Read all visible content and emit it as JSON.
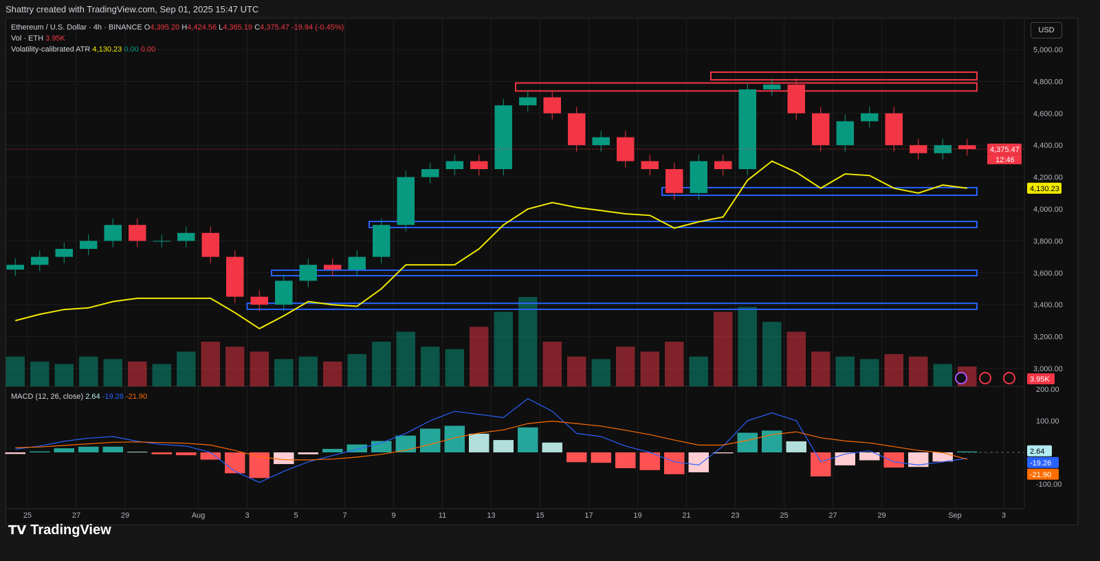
{
  "header": {
    "caption": "Shattry created with TradingView.com, Sep 01, 2025 15:47 UTC",
    "symbol": "Ethereum / U.S. Dollar · 4h · BINANCE",
    "o": "4,395.20",
    "h": "4,424.56",
    "l": "4,365.19",
    "c": "4,375.47",
    "change": "-19.94 (-0.45%)",
    "vol_label": "Vol · ETH",
    "vol_value": "3.95K",
    "atr_label": "Volatility-calibrated ATR",
    "atr_value": "4,130.23",
    "atr_v2": "0.00",
    "atr_v3": "0.00",
    "currency": "USD"
  },
  "macd_legend": {
    "label": "MACD (12, 26, close)",
    "hist": "2.64",
    "macd": "-19.26",
    "signal": "-21.90"
  },
  "badges": {
    "price": "4,375.47",
    "countdown": "12:46",
    "atr": "4,130.23",
    "vol": "3.95K",
    "hist": "2.64",
    "macd": "-19.26",
    "signal": "-21.90"
  },
  "footer": {
    "logo": "TradingView"
  },
  "colors": {
    "up": "#089981",
    "down": "#f23645",
    "atr": "#f2ea00",
    "macd": "#2962ff",
    "signal": "#ff6d00",
    "box_red": "#f23645",
    "box_blue": "#2962ff"
  },
  "chart_data": {
    "type": "candlestick",
    "price_axis": {
      "ticks": [
        "5,000.00",
        "4,800.00",
        "4,600.00",
        "4,400.00",
        "4,200.00",
        "4,000.00",
        "3,800.00",
        "3,600.00",
        "3,400.00",
        "3,200.00",
        "3,000.00"
      ],
      "range": [
        2900,
        5100
      ]
    },
    "macd_axis": {
      "ticks": [
        "200.00",
        "100.00",
        "-100.00"
      ],
      "range": [
        -120,
        200
      ]
    },
    "time_axis": {
      "ticks": [
        "25",
        "27",
        "29",
        "Aug",
        "3",
        "5",
        "7",
        "9",
        "11",
        "13",
        "15",
        "17",
        "19",
        "21",
        "23",
        "25",
        "27",
        "29",
        "Sep",
        "3"
      ]
    },
    "dates": [
      "2025-07-24",
      "2025-07-25",
      "2025-07-26",
      "2025-07-27",
      "2025-07-28",
      "2025-07-29",
      "2025-07-30",
      "2025-07-31",
      "2025-08-01",
      "2025-08-02",
      "2025-08-03",
      "2025-08-04",
      "2025-08-05",
      "2025-08-06",
      "2025-08-07",
      "2025-08-08",
      "2025-08-09",
      "2025-08-10",
      "2025-08-11",
      "2025-08-12",
      "2025-08-13",
      "2025-08-14",
      "2025-08-15",
      "2025-08-16",
      "2025-08-17",
      "2025-08-18",
      "2025-08-19",
      "2025-08-20",
      "2025-08-21",
      "2025-08-22",
      "2025-08-23",
      "2025-08-24",
      "2025-08-25",
      "2025-08-26",
      "2025-08-27",
      "2025-08-28",
      "2025-08-29",
      "2025-08-30",
      "2025-08-31",
      "2025-09-01"
    ],
    "close": [
      3650,
      3700,
      3750,
      3800,
      3900,
      3800,
      3800,
      3850,
      3700,
      3450,
      3400,
      3550,
      3650,
      3620,
      3700,
      3900,
      4200,
      4250,
      4300,
      4250,
      4650,
      4700,
      4600,
      4400,
      4450,
      4300,
      4250,
      4100,
      4300,
      4250,
      4750,
      4780,
      4600,
      4400,
      4550,
      4600,
      4400,
      4350,
      4400,
      4375
    ],
    "volume": [
      60,
      50,
      45,
      60,
      55,
      50,
      45,
      70,
      90,
      80,
      70,
      55,
      60,
      50,
      65,
      90,
      110,
      80,
      75,
      120,
      150,
      180,
      90,
      60,
      55,
      80,
      70,
      90,
      60,
      150,
      160,
      130,
      110,
      70,
      60,
      55,
      65,
      60,
      45,
      40
    ],
    "atr": [
      3300,
      3340,
      3370,
      3380,
      3420,
      3440,
      3440,
      3440,
      3440,
      3350,
      3250,
      3330,
      3420,
      3400,
      3390,
      3500,
      3650,
      3650,
      3650,
      3750,
      3900,
      4000,
      4040,
      4010,
      3990,
      3970,
      3960,
      3880,
      3920,
      3950,
      4180,
      4300,
      4230,
      4130,
      4220,
      4210,
      4130,
      4100,
      4150,
      4130
    ],
    "macd": [
      10,
      20,
      35,
      45,
      50,
      35,
      25,
      20,
      0,
      -60,
      -95,
      -60,
      -30,
      -10,
      10,
      30,
      60,
      100,
      130,
      120,
      110,
      170,
      130,
      60,
      50,
      20,
      0,
      -30,
      -40,
      20,
      100,
      125,
      100,
      -30,
      -5,
      5,
      -30,
      -40,
      -30,
      -19
    ],
    "signal": [
      15,
      17,
      22,
      27,
      32,
      33,
      31,
      29,
      23,
      6,
      -14,
      -23,
      -24,
      -21,
      -15,
      -6,
      7,
      25,
      46,
      61,
      71,
      91,
      99,
      91,
      83,
      70,
      56,
      39,
      23,
      23,
      38,
      56,
      65,
      46,
      36,
      30,
      18,
      6,
      -1,
      -22
    ],
    "boxes": [
      {
        "color": "red",
        "from": "2025-08-14",
        "to": "2025-09-01",
        "lo": 4740,
        "hi": 4790
      },
      {
        "color": "red",
        "from": "2025-08-22",
        "to": "2025-09-01",
        "lo": 4810,
        "hi": 4858
      },
      {
        "color": "blue",
        "from": "2025-08-20",
        "to": "2025-09-01",
        "lo": 4086,
        "hi": 4134
      },
      {
        "color": "blue",
        "from": "2025-08-08",
        "to": "2025-09-01",
        "lo": 3884,
        "hi": 3922
      },
      {
        "color": "blue",
        "from": "2025-08-04",
        "to": "2025-09-01",
        "lo": 3582,
        "hi": 3616
      },
      {
        "color": "blue",
        "from": "2025-08-03",
        "to": "2025-09-01",
        "lo": 3371,
        "hi": 3409
      }
    ]
  }
}
